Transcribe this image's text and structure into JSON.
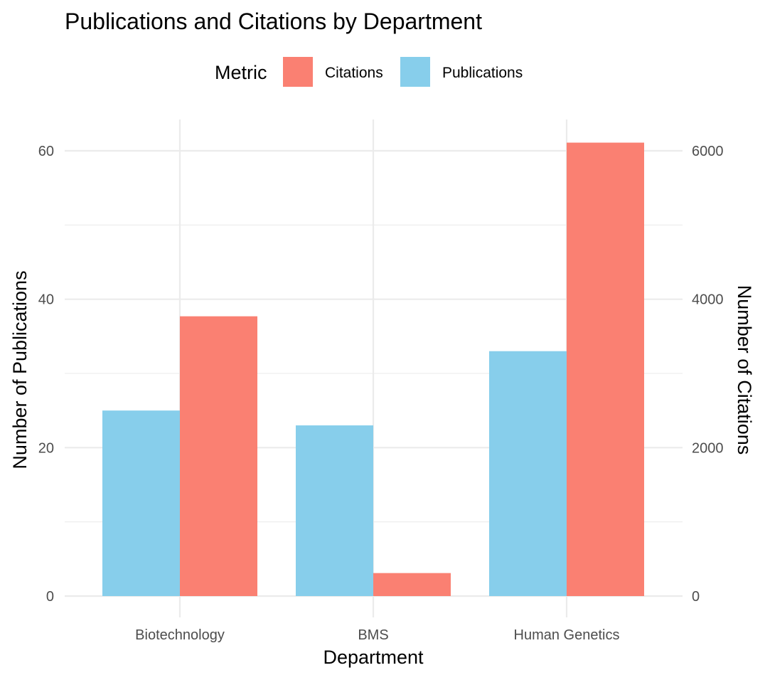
{
  "chart_data": {
    "type": "bar",
    "title": "Publications and Citations by Department",
    "xlabel": "Department",
    "ylabel": "Number of Publications",
    "y2label": "Number of Citations",
    "legend": {
      "title": "Metric",
      "position": "top",
      "entries": [
        {
          "label": "Citations",
          "color": "#FA8072"
        },
        {
          "label": "Publications",
          "color": "#87CEEB"
        }
      ]
    },
    "categories": [
      "Biotechnology",
      "BMS",
      "Human Genetics"
    ],
    "series": [
      {
        "name": "Publications",
        "axis": "left",
        "color": "#87CEEB",
        "values": [
          25,
          23,
          33
        ]
      },
      {
        "name": "Citations",
        "axis": "right",
        "color": "#FA8072",
        "values": [
          3770,
          310,
          6110
        ]
      }
    ],
    "ylim": [
      0,
      64
    ],
    "y2lim": [
      0,
      6400
    ],
    "yticks": [
      "0",
      "20",
      "40",
      "60"
    ],
    "y2ticks": [
      "0",
      "2000",
      "4000",
      "6000"
    ],
    "grid": true
  }
}
